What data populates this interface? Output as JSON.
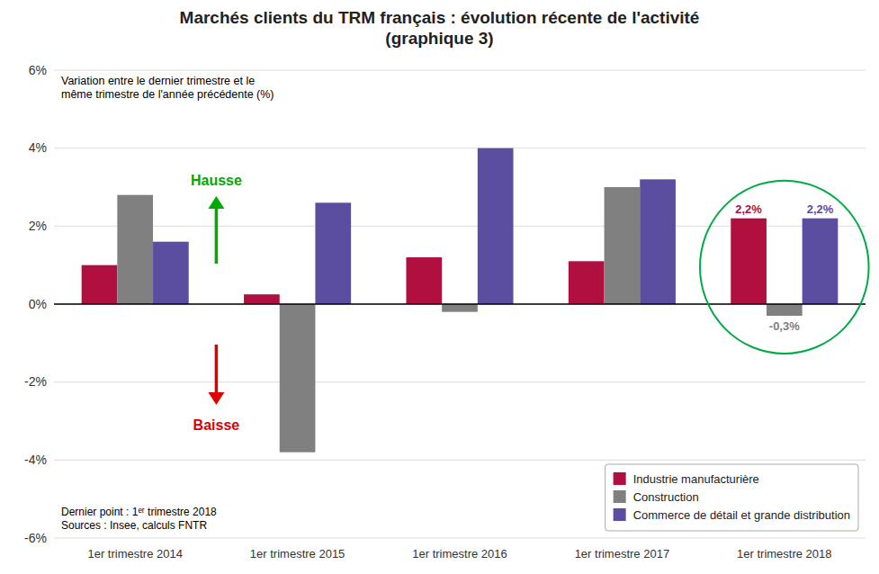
{
  "chart_data": {
    "type": "bar",
    "title": "Marchés clients du TRM français : évolution récente de l'activité\n(graphique 3)",
    "subtitle": "Variation entre le dernier trimestre et le\nmême trimestre de l'année précédente (%)",
    "categories": [
      "1er trimestre 2014",
      "1er trimestre 2015",
      "1er trimestre 2016",
      "1er trimestre 2017",
      "1er trimestre 2018"
    ],
    "series": [
      {
        "name": "Industrie manufacturière",
        "color": "#b01040",
        "values": [
          1.0,
          0.25,
          1.2,
          1.1,
          2.2
        ],
        "value_labels": [
          null,
          null,
          null,
          null,
          "2,2%"
        ]
      },
      {
        "name": "Construction",
        "color": "#808080",
        "values": [
          2.8,
          -3.8,
          -0.2,
          3.0,
          -0.3
        ],
        "value_labels": [
          null,
          null,
          null,
          null,
          "-0,3%"
        ]
      },
      {
        "name": "Commerce de détail et grande distribution",
        "color": "#5b4ea0",
        "values": [
          1.6,
          2.6,
          4.0,
          3.2,
          2.2
        ],
        "value_labels": [
          null,
          null,
          null,
          null,
          "2,2%"
        ]
      }
    ],
    "ylim": [
      -6,
      6
    ],
    "yticks": [
      {
        "value": -6,
        "label": "-6%"
      },
      {
        "value": -4,
        "label": "-4%"
      },
      {
        "value": -2,
        "label": "-2%"
      },
      {
        "value": 0,
        "label": "0%"
      },
      {
        "value": 2,
        "label": "2%"
      },
      {
        "value": 4,
        "label": "4%"
      },
      {
        "value": 6,
        "label": "6%"
      }
    ],
    "grid": true,
    "legend": "lower right",
    "annotations": [
      "Hausse",
      "Baisse"
    ],
    "footer": [
      "Dernier point : 1ᵉʳ trimestre 2018",
      "Sources : Insee, calculs FNTR"
    ]
  }
}
